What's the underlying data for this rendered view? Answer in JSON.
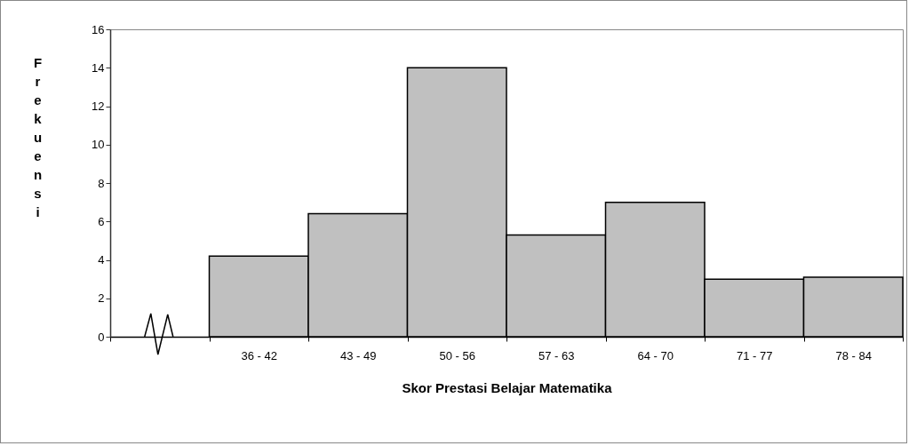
{
  "chart_data": {
    "type": "bar",
    "xlabel": "Skor Prestasi Belajar Matematika",
    "ylabel": "Frekuensi",
    "categories": [
      null,
      "36 - 42",
      "43 - 49",
      "50 - 56",
      "57 - 63",
      "64 - 70",
      "71 - 77",
      "78 - 84"
    ],
    "values": [
      null,
      4.2,
      6.4,
      14,
      5.3,
      7,
      3.0,
      3.1
    ],
    "color": "#c0c0c0",
    "ylim": [
      0,
      16
    ],
    "yticks": [
      0,
      2,
      4,
      6,
      8,
      10,
      12,
      14,
      16
    ],
    "grid": false
  }
}
